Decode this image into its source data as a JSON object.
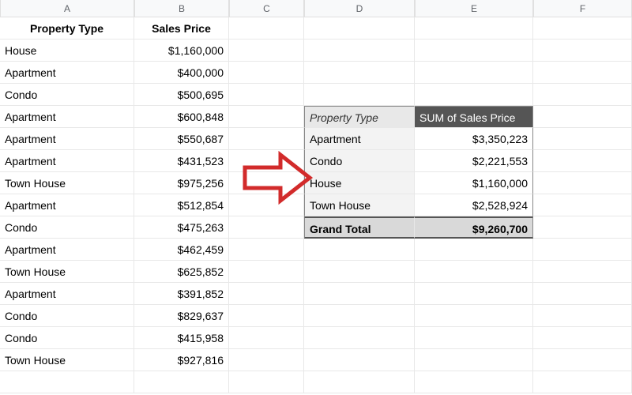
{
  "columns": [
    "A",
    "B",
    "C",
    "D",
    "E",
    "F"
  ],
  "main": {
    "headers": {
      "col_a": "Property Type",
      "col_b": "Sales Price"
    },
    "rows": [
      {
        "type": "House",
        "price": "$1,160,000"
      },
      {
        "type": "Apartment",
        "price": "$400,000"
      },
      {
        "type": "Condo",
        "price": "$500,695"
      },
      {
        "type": "Apartment",
        "price": "$600,848"
      },
      {
        "type": "Apartment",
        "price": "$550,687"
      },
      {
        "type": "Apartment",
        "price": "$431,523"
      },
      {
        "type": "Town House",
        "price": "$975,256"
      },
      {
        "type": "Apartment",
        "price": "$512,854"
      },
      {
        "type": "Condo",
        "price": "$475,263"
      },
      {
        "type": "Apartment",
        "price": "$462,459"
      },
      {
        "type": "Town House",
        "price": "$625,852"
      },
      {
        "type": "Apartment",
        "price": "$391,852"
      },
      {
        "type": "Condo",
        "price": "$829,637"
      },
      {
        "type": "Condo",
        "price": "$415,958"
      },
      {
        "type": "Town House",
        "price": "$927,816"
      }
    ]
  },
  "pivot": {
    "header_left": "Property Type",
    "header_right": "SUM of Sales Price",
    "rows": [
      {
        "label": "Apartment",
        "value": "$3,350,223"
      },
      {
        "label": "Condo",
        "value": "$2,221,553"
      },
      {
        "label": "House",
        "value": "$1,160,000"
      },
      {
        "label": "Town House",
        "value": "$2,528,924"
      }
    ],
    "total_label": "Grand Total",
    "total_value": "$9,260,700"
  },
  "arrow": {
    "color": "#d22b2b",
    "stroke_width": 5
  }
}
